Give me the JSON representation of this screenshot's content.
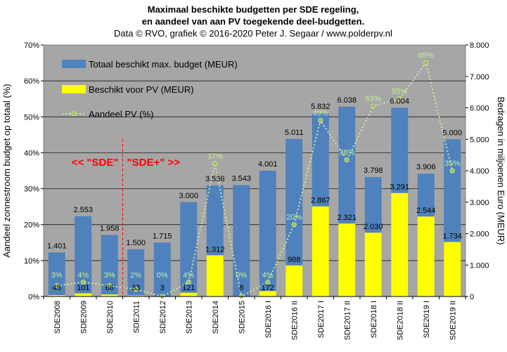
{
  "chart_data": {
    "type": "bar",
    "title_lines": [
      "Maximaal beschikte budgetten per SDE regeling,",
      "en aandeel van aan PV toegekende deel-budgetten."
    ],
    "subtitle": "Data © RVO, grafiek © 2016-2020 Peter J. Segaar / www.polderpv.nl",
    "categories": [
      "SDE2008",
      "SDE2009",
      "SDE2010",
      "SDE2011",
      "SDE2012",
      "SDE2013",
      "SDE2014",
      "SDE2015",
      "SDE2016 I",
      "SDE2016 II",
      "SDE2017 I",
      "SDE2017 II",
      "SDE2018 I",
      "SDE2018 II",
      "SDE2019 I",
      "SDE2019 II"
    ],
    "series": [
      {
        "name": "Totaal beschikt max. budget (MEUR)",
        "axis": "right",
        "color": "#4f81bd",
        "values": [
          1401,
          2553,
          1958,
          1500,
          1715,
          3000,
          3536,
          3543,
          4001,
          5011,
          5832,
          6038,
          3798,
          6004,
          3906,
          5000
        ],
        "labels": [
          "1.401",
          "2.553",
          "1.958",
          "1.500",
          "1.715",
          "3.000",
          "3.536",
          "3.543",
          "4.001",
          "5.011",
          "5.832",
          "6.038",
          "3.798",
          "6.004",
          "3.906",
          "5.000"
        ]
      },
      {
        "name": "Beschikt voor PV (MEUR)",
        "axis": "right",
        "color": "#ffff00",
        "values": [
          45,
          101,
          66,
          33,
          3,
          121,
          1312,
          8,
          172,
          988,
          2867,
          2321,
          2030,
          3291,
          2544,
          1734
        ],
        "labels": [
          "45",
          "101",
          "66",
          "33",
          "3",
          "121",
          "1.312",
          "8",
          "172",
          "988",
          "2.867",
          "2.321",
          "2.030",
          "3.291",
          "2.544",
          "1.734"
        ]
      },
      {
        "name": "Aandeel PV (%)",
        "axis": "left",
        "type": "line",
        "color": "#c9ef9a",
        "values": [
          3,
          4,
          3,
          2,
          0,
          4,
          37,
          0,
          4,
          20,
          49,
          38,
          53,
          55,
          65,
          35
        ],
        "labels": [
          "3%",
          "4%",
          "3%",
          "2%",
          "0%",
          "4%",
          "37%",
          "0%",
          "4%",
          "20%",
          "49%",
          "38%",
          "53%",
          "55%",
          "65%",
          "35%"
        ]
      }
    ],
    "left_axis": {
      "label": "Aandeel zonnestroom budget op totaal (%)",
      "ylim": [
        0,
        70
      ],
      "ticks": [
        "0%",
        "10%",
        "20%",
        "30%",
        "40%",
        "50%",
        "60%",
        "70%"
      ]
    },
    "right_axis": {
      "label": "Bedragen in miljoenen Euro (MEUR)",
      "ylim": [
        0,
        8000
      ],
      "ticks": [
        "0",
        "1.000",
        "2.000",
        "3.000",
        "4.000",
        "5.000",
        "6.000",
        "7.000",
        "8.000"
      ]
    },
    "grid": true,
    "legend": "top-left",
    "annotation": {
      "left": "<< \"SDE\"",
      "right": "\"SDE+\" >>"
    },
    "colors": {
      "plot_bg": "#a6a6a6",
      "annotation": "#ff0000"
    }
  }
}
